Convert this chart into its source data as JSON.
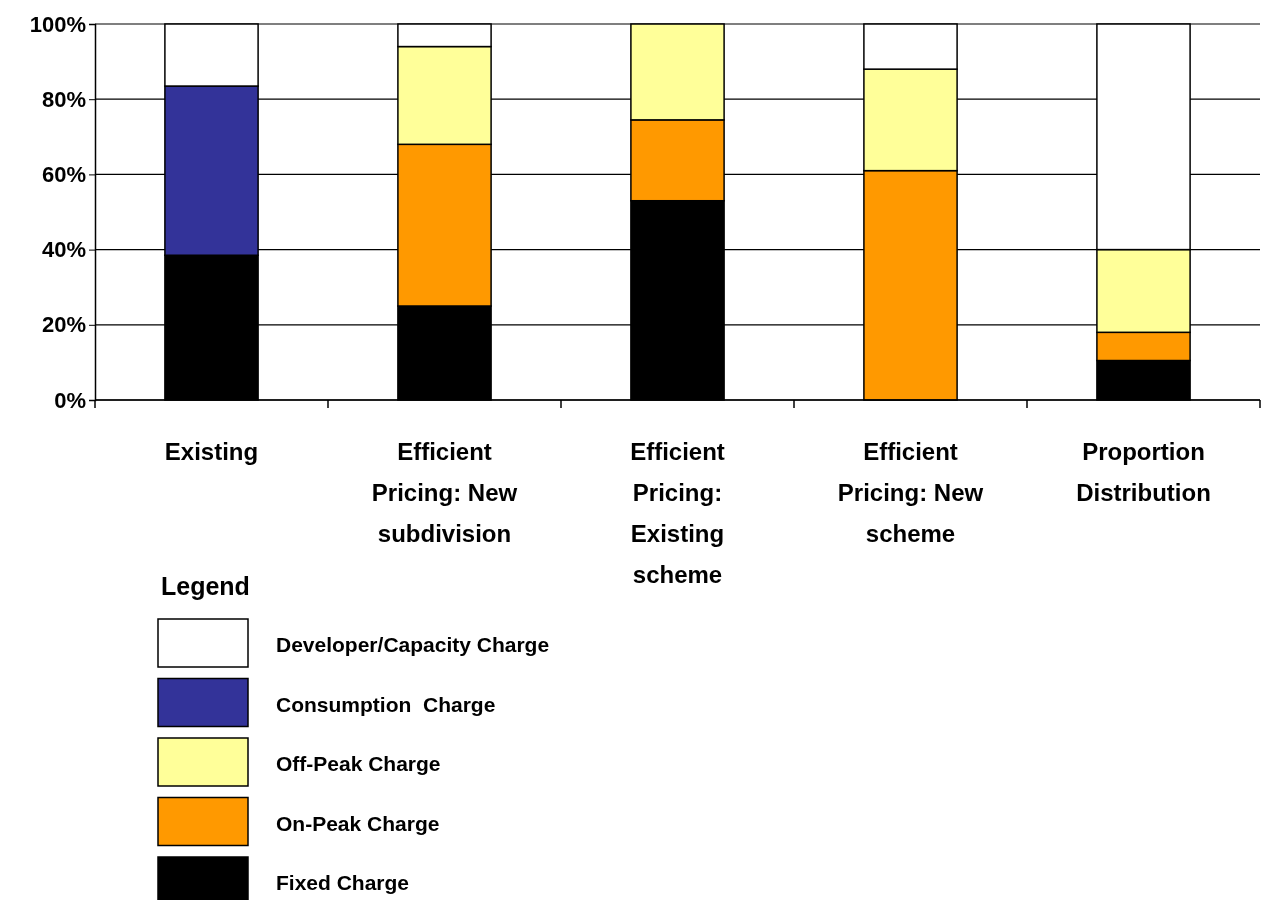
{
  "chart_data": {
    "type": "bar",
    "stacked": true,
    "legend_title": "Legend",
    "legend": "bottom left",
    "grid": "y",
    "categories": [
      "Existing",
      "Efficient Pricing: New subdivision",
      "Efficient Pricing: Existing scheme",
      "Efficient Pricing: New scheme",
      "Proportion Distribution"
    ],
    "ylim": [
      0,
      100
    ],
    "yticks": [
      {
        "value": 0,
        "label": "0%"
      },
      {
        "value": 20,
        "label": "20%"
      },
      {
        "value": 40,
        "label": "40%"
      },
      {
        "value": 60,
        "label": "60%"
      },
      {
        "value": 80,
        "label": "80%"
      },
      {
        "value": 100,
        "label": "100%"
      }
    ],
    "series": [
      {
        "name": "Fixed Charge",
        "color": "#000000",
        "values": [
          38.5,
          25,
          53,
          0,
          10.5
        ]
      },
      {
        "name": "On-Peak Charge",
        "color": "#ff9900",
        "values": [
          0,
          43,
          21.5,
          61,
          7.5
        ]
      },
      {
        "name": "Off-Peak Charge",
        "color": "#ffff99",
        "values": [
          0,
          26,
          25.5,
          27,
          22
        ]
      },
      {
        "name": "Consumption  Charge",
        "color": "#333399",
        "values": [
          45,
          0,
          0,
          0,
          0
        ]
      },
      {
        "name": "Developer/Capacity Charge",
        "color": "#ffffff",
        "values": [
          16.5,
          6,
          0,
          12,
          60
        ]
      }
    ]
  }
}
